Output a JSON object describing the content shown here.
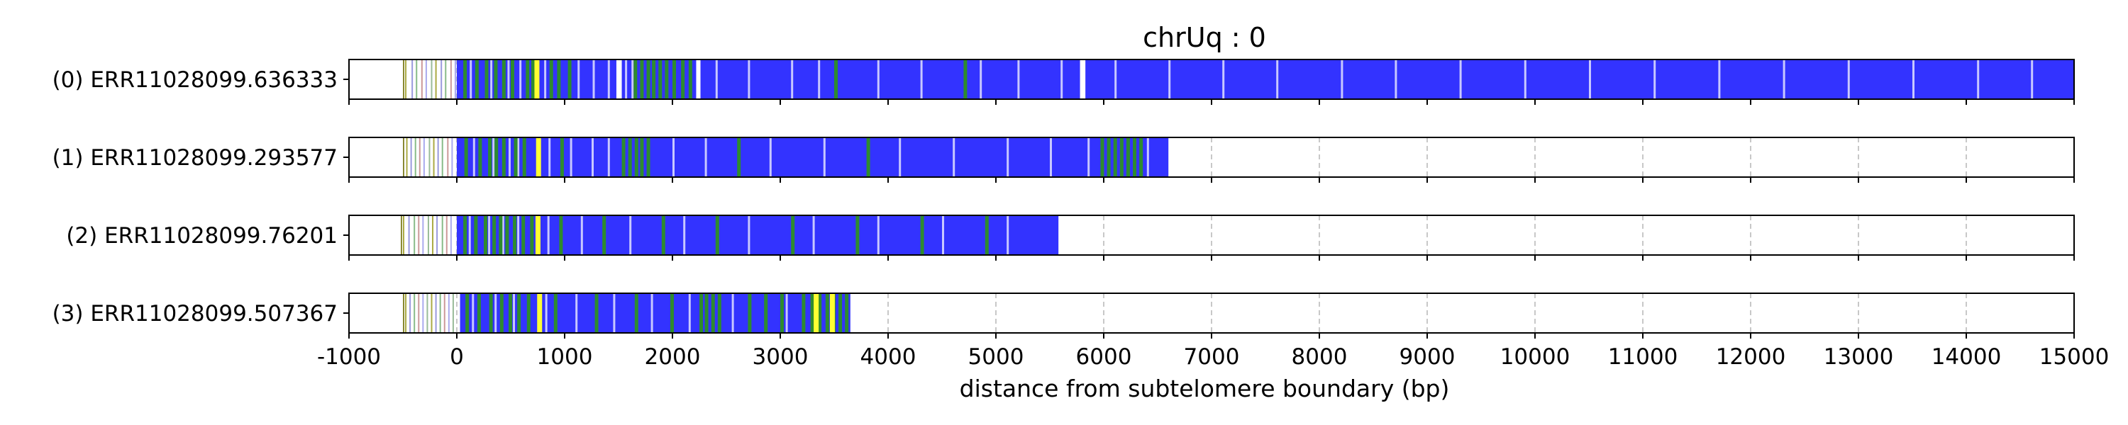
{
  "chart_data": {
    "type": "read-track",
    "title": "chrUq : 0",
    "xlabel": "distance from subtelomere boundary (bp)",
    "xlim": [
      -1000,
      15000
    ],
    "xticks": [
      -1000,
      0,
      1000,
      2000,
      3000,
      4000,
      5000,
      6000,
      7000,
      8000,
      9000,
      10000,
      11000,
      12000,
      13000,
      14000,
      15000
    ],
    "grid": "vertical dashed",
    "colors": {
      "blue": "#3333ff",
      "green": "#2e8b2e",
      "yellow": "#ffff33",
      "frame": "#000000",
      "grid": "#c8c8c8"
    },
    "reads": [
      {
        "label": "(0) ERR11028099.636333",
        "start": -500,
        "end": 15000,
        "blocks": [
          [
            0,
            1480
          ],
          [
            1530,
            2220
          ],
          [
            2260,
            5780
          ],
          [
            5830,
            15000
          ]
        ],
        "green_marks": [
          60,
          170,
          260,
          345,
          420,
          500,
          640,
          690,
          860,
          930,
          1030,
          1640,
          1700,
          1760,
          1810,
          1870,
          1930,
          2000,
          2080,
          2150,
          3500,
          4700
        ],
        "yellow_marks": [
          720
        ],
        "light_gaps": [
          120,
          310,
          470,
          580,
          810,
          1120,
          1260,
          1400,
          1560,
          1620,
          2400,
          2700,
          3100,
          3350,
          3900,
          4300,
          4850,
          5200,
          5600,
          6100,
          6600,
          7100,
          7600,
          8200,
          8700,
          9300,
          9900,
          10500,
          11100,
          11700,
          12300,
          12900,
          13500,
          14100,
          14600
        ],
        "prefix_marks": [
          -480,
          -420,
          -380,
          -330,
          -290,
          -240,
          -200,
          -150,
          -110,
          -60,
          -20
        ]
      },
      {
        "label": "(1) ERR11028099.293577",
        "start": -500,
        "end": 6600,
        "blocks": [
          [
            0,
            6600
          ]
        ],
        "green_marks": [
          70,
          200,
          290,
          350,
          420,
          530,
          610,
          960,
          1530,
          1590,
          1650,
          1700,
          1760,
          2600,
          3800,
          5970,
          6030,
          6090,
          6150,
          6210,
          6270,
          6330
        ],
        "yellow_marks": [
          735
        ],
        "light_gaps": [
          150,
          330,
          480,
          560,
          850,
          1050,
          1250,
          1400,
          2000,
          2300,
          2900,
          3400,
          4100,
          4600,
          5100,
          5500,
          5850,
          6400
        ],
        "prefix_marks": [
          -470,
          -430,
          -390,
          -350,
          -310,
          -260,
          -220,
          -180,
          -140,
          -90,
          -50
        ]
      },
      {
        "label": "(2) ERR11028099.76201",
        "start": -520,
        "end": 5580,
        "blocks": [
          [
            0,
            5580
          ]
        ],
        "green_marks": [
          60,
          160,
          250,
          330,
          390,
          450,
          520,
          600,
          680,
          950,
          1350,
          1900,
          2400,
          3100,
          3700,
          4300,
          4900
        ],
        "yellow_marks": [
          730
        ],
        "light_gaps": [
          110,
          290,
          420,
          560,
          840,
          1150,
          1600,
          2100,
          2700,
          3300,
          3900,
          4500,
          5100
        ],
        "prefix_marks": [
          -500,
          -450,
          -400,
          -360,
          -320,
          -270,
          -230,
          -190,
          -140,
          -100,
          -60
        ]
      },
      {
        "label": "(3) ERR11028099.507367",
        "start": -500,
        "end": 3650,
        "blocks": [
          [
            30,
            3650
          ]
        ],
        "green_marks": [
          80,
          190,
          300,
          400,
          480,
          560,
          650,
          900,
          1280,
          1650,
          1980,
          2250,
          2300,
          2360,
          2420,
          2700,
          2850,
          3000,
          3200,
          3280,
          3350,
          3420,
          3480,
          3540,
          3600
        ],
        "yellow_marks": [
          745,
          3310,
          3460
        ],
        "light_gaps": [
          140,
          350,
          520,
          820,
          1100,
          1450,
          1800,
          2150,
          2550,
          3050
        ],
        "prefix_marks": [
          -480,
          -440,
          -400,
          -360,
          -320,
          -280,
          -240,
          -200,
          -160,
          -120,
          -80,
          -40
        ]
      }
    ]
  }
}
